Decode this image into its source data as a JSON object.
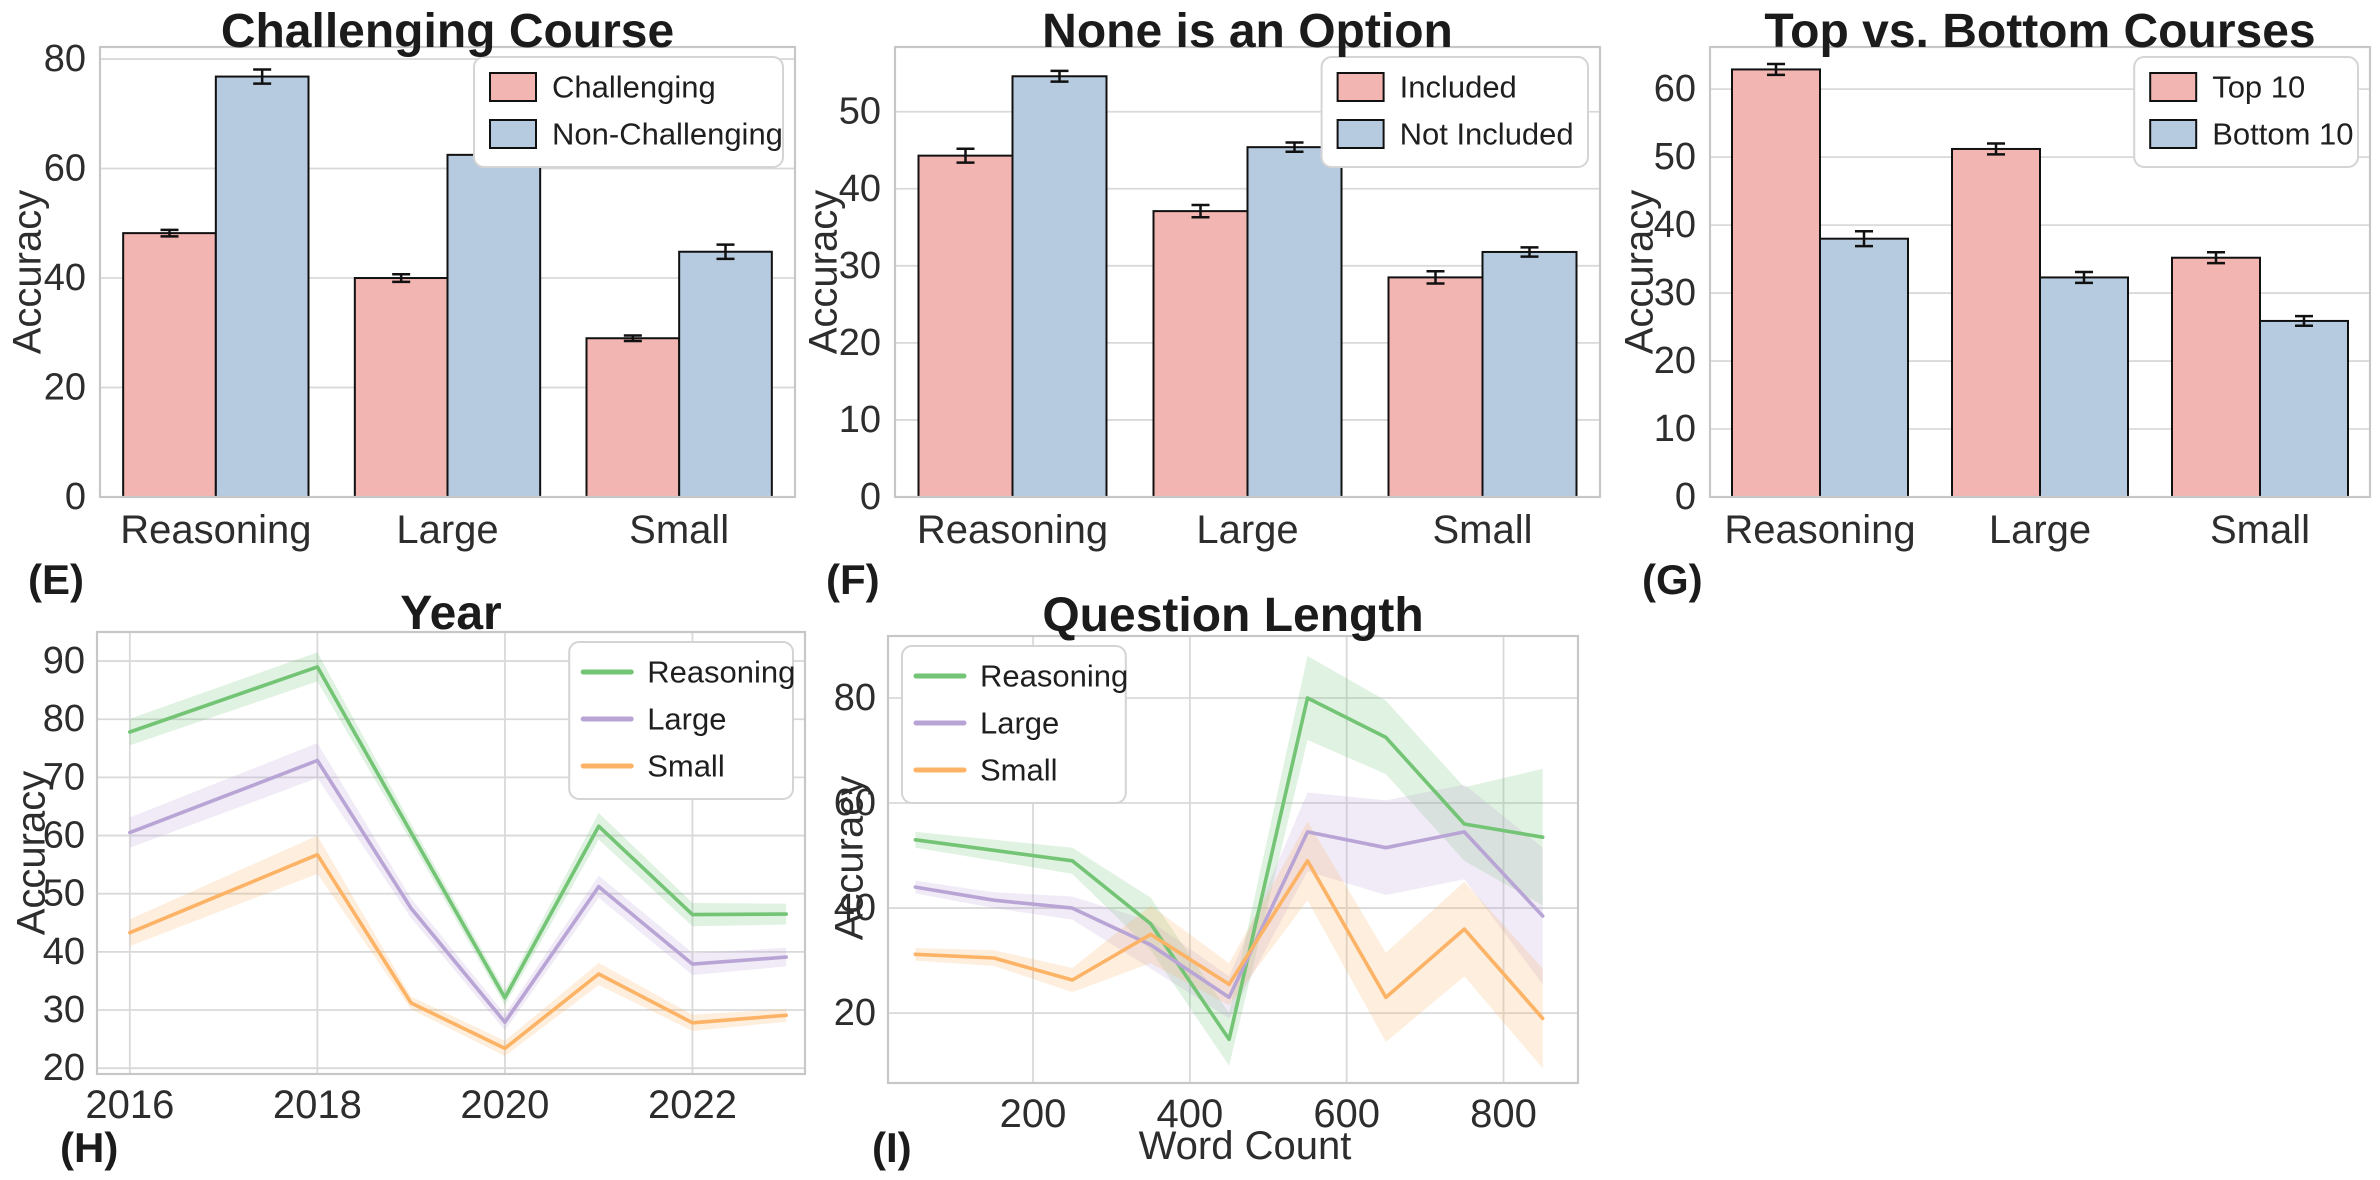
{
  "figure": {
    "background": "#ffffff",
    "grid_color": "#d9d9d9",
    "spine_color": "#c7c7c7",
    "tick_color": "#2d2d2d",
    "title_color": "#1b1b1b",
    "legend_border_color": "#d4d4d4",
    "bar_edge_color": "#111111",
    "error_bar_color": "#111111"
  },
  "palette": {
    "pink": "#f2b5b1",
    "blue": "#b7cbe0",
    "green": "#74c476",
    "purple": "#b9a5d5",
    "orange": "#fcb366"
  },
  "chart_data": [
    {
      "id": "E",
      "panel_label": "(E)",
      "type": "bar",
      "title": "Challenging Course",
      "ylabel": "Accuracy",
      "categories": [
        "Reasoning",
        "Large",
        "Small"
      ],
      "series": [
        {
          "name": "Challenging",
          "color_key": "pink",
          "values": [
            48.2,
            40.0,
            29.0
          ],
          "errors": [
            0.6,
            0.7,
            0.5
          ]
        },
        {
          "name": "Non-Challenging",
          "color_key": "blue",
          "values": [
            76.8,
            62.5,
            44.8
          ],
          "errors": [
            1.3,
            1.0,
            1.3
          ]
        }
      ],
      "yticks": [
        0,
        20,
        40,
        60,
        80
      ],
      "ylim": [
        0,
        82.2
      ],
      "grid": "horizontal",
      "legend_position": "top-right"
    },
    {
      "id": "F",
      "panel_label": "(F)",
      "type": "bar",
      "title": "None is an Option",
      "ylabel": "Accuracy",
      "categories": [
        "Reasoning",
        "Large",
        "Small"
      ],
      "series": [
        {
          "name": "Included",
          "color_key": "pink",
          "values": [
            44.3,
            37.1,
            28.5
          ],
          "errors": [
            0.9,
            0.8,
            0.8
          ]
        },
        {
          "name": "Not Included",
          "color_key": "blue",
          "values": [
            54.6,
            45.4,
            31.8
          ],
          "errors": [
            0.7,
            0.6,
            0.6
          ]
        }
      ],
      "yticks": [
        0,
        10,
        20,
        30,
        40,
        50
      ],
      "ylim": [
        0,
        58.4
      ],
      "grid": "horizontal",
      "legend_position": "top-right"
    },
    {
      "id": "G",
      "panel_label": "(G)",
      "type": "bar",
      "title": "Top vs. Bottom Courses",
      "ylabel": "Accuracy",
      "categories": [
        "Reasoning",
        "Large",
        "Small"
      ],
      "series": [
        {
          "name": "Top 10",
          "color_key": "pink",
          "values": [
            62.9,
            51.2,
            35.2
          ],
          "errors": [
            0.8,
            0.8,
            0.8
          ]
        },
        {
          "name": "Bottom 10",
          "color_key": "blue",
          "values": [
            38.0,
            32.3,
            25.9
          ],
          "errors": [
            1.1,
            0.8,
            0.7
          ]
        }
      ],
      "yticks": [
        0,
        10,
        20,
        30,
        40,
        50,
        60
      ],
      "ylim": [
        0,
        66.2
      ],
      "grid": "horizontal",
      "legend_position": "top-right"
    },
    {
      "id": "H",
      "panel_label": "(H)",
      "type": "line",
      "title": "Year",
      "ylabel": "Accuracy",
      "x": [
        2016,
        2017,
        2018,
        2019,
        2020,
        2021,
        2022,
        2023
      ],
      "xticks": [
        2016,
        2018,
        2020,
        2022
      ],
      "xlim": [
        2015.65,
        2023.2
      ],
      "yticks": [
        20,
        30,
        40,
        50,
        60,
        70,
        80,
        90
      ],
      "ylim": [
        19,
        95
      ],
      "grid": "both",
      "legend_position": "top-right",
      "series": [
        {
          "name": "Reasoning",
          "color_key": "green",
          "values": [
            77.8,
            83.4,
            89.0,
            60.5,
            32.1,
            61.6,
            46.4,
            46.5
          ],
          "band": [
            2.3,
            2.4,
            2.5,
            1.5,
            1.3,
            2.3,
            2.0,
            1.8
          ]
        },
        {
          "name": "Large",
          "color_key": "purple",
          "values": [
            60.5,
            66.7,
            72.9,
            47.5,
            27.9,
            51.2,
            37.9,
            39.1
          ],
          "band": [
            2.6,
            2.8,
            3.0,
            1.7,
            1.4,
            1.9,
            1.9,
            1.6
          ]
        },
        {
          "name": "Small",
          "color_key": "orange",
          "values": [
            43.3,
            50.0,
            56.7,
            31.2,
            23.4,
            36.2,
            27.8,
            29.1
          ],
          "band": [
            2.3,
            2.8,
            3.3,
            1.1,
            1.3,
            1.9,
            1.4,
            1.1
          ]
        }
      ]
    },
    {
      "id": "I",
      "panel_label": "(I)",
      "type": "line",
      "title": "Question Length",
      "ylabel": "Accuracy",
      "xlabel": "Word Count",
      "x": [
        50,
        150,
        250,
        350,
        450,
        550,
        650,
        750,
        850
      ],
      "xticks": [
        200,
        400,
        600,
        800
      ],
      "xlim": [
        15,
        895
      ],
      "yticks": [
        20,
        40,
        60,
        80
      ],
      "ylim": [
        6.7,
        91.8
      ],
      "grid": "both",
      "legend_position": "top-left",
      "series": [
        {
          "name": "Reasoning",
          "color_key": "green",
          "values": [
            53.0,
            51.0,
            49.0,
            37.0,
            15.0,
            80.0,
            72.5,
            56.0,
            53.5
          ],
          "band": [
            1.5,
            2.0,
            2.5,
            5.0,
            5.0,
            8.0,
            7.0,
            7.0,
            13.0
          ]
        },
        {
          "name": "Large",
          "color_key": "purple",
          "values": [
            44.0,
            41.5,
            40.0,
            33.0,
            23.0,
            54.5,
            51.5,
            54.5,
            38.5
          ],
          "band": [
            1.2,
            1.5,
            2.2,
            4.5,
            4.0,
            7.5,
            9.0,
            9.0,
            13.0
          ]
        },
        {
          "name": "Small",
          "color_key": "orange",
          "values": [
            31.2,
            30.5,
            26.3,
            35.0,
            25.5,
            49.0,
            23.0,
            36.0,
            19.0
          ],
          "band": [
            1.2,
            1.5,
            2.3,
            5.5,
            4.0,
            7.5,
            8.5,
            9.0,
            9.5
          ]
        }
      ]
    }
  ]
}
